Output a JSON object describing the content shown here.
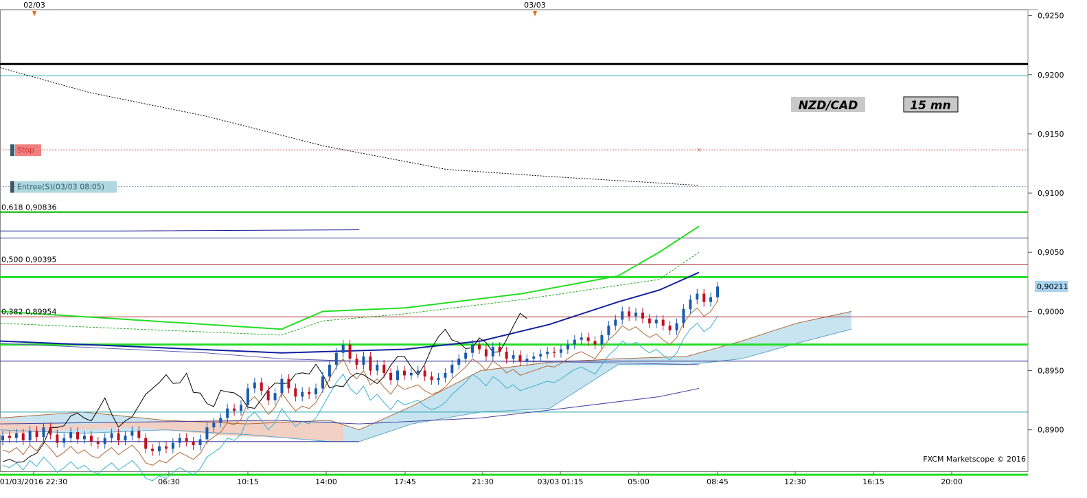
{
  "chart_data": {
    "type": "candlestick",
    "instrument_label": "NZD/CAD",
    "timeframe_label": "15 mn",
    "watermark": "FXCM Marketscope © 2016",
    "y_range": [
      0.8865,
      0.9255
    ],
    "y_ticks": [
      "0,9250",
      "0,9200",
      "0,9150",
      "0,9100",
      "0,9050",
      "0,9000",
      "0,8950",
      "0,8900"
    ],
    "y_tick_values": [
      0.925,
      0.92,
      0.915,
      0.91,
      0.905,
      0.9,
      0.895,
      0.89
    ],
    "current_price_label": "0,90211",
    "current_price": 0.90211,
    "x_ticks": [
      "01/03/2016 22:30",
      "06:30",
      "10:15",
      "14:00",
      "17:45",
      "21:30",
      "03/03 01:15",
      "05:00",
      "08:45",
      "12:30",
      "16:15",
      "20:00"
    ],
    "top_date_labels": [
      "02/03",
      "03/03"
    ],
    "fib_levels": [
      {
        "label": "0,618 0,90836",
        "value": 0.90836
      },
      {
        "label": "0,500 0,90395",
        "value": 0.90395
      },
      {
        "label": "0,382 0,89954",
        "value": 0.89954
      }
    ],
    "order_labels": [
      {
        "label": "Stop",
        "value": 0.91365
      },
      {
        "label": "Entree(S)(03/03 08:05)",
        "value": 0.91055
      }
    ],
    "horizontal_levels": [
      0.9209,
      0.9199,
      0.9084,
      0.9062,
      0.9029,
      0.8972,
      0.8958,
      0.8915,
      0.8862
    ],
    "candles_close": [
      0.8895,
      0.8893,
      0.8897,
      0.8891,
      0.8899,
      0.8894,
      0.8902,
      0.8896,
      0.8889,
      0.8893,
      0.8898,
      0.8892,
      0.8895,
      0.889,
      0.8888,
      0.8893,
      0.8897,
      0.8891,
      0.8895,
      0.8899,
      0.8893,
      0.8884,
      0.8882,
      0.8886,
      0.8884,
      0.8889,
      0.8893,
      0.889,
      0.8887,
      0.8892,
      0.8902,
      0.8906,
      0.891,
      0.8918,
      0.8916,
      0.8921,
      0.8935,
      0.894,
      0.8933,
      0.8925,
      0.8931,
      0.8943,
      0.8935,
      0.8928,
      0.8932,
      0.893,
      0.8935,
      0.8945,
      0.8955,
      0.8965,
      0.8972,
      0.896,
      0.8955,
      0.8962,
      0.895,
      0.8955,
      0.8948,
      0.8942,
      0.895,
      0.8946,
      0.8948,
      0.895,
      0.8945,
      0.8942,
      0.8944,
      0.8948,
      0.8955,
      0.896,
      0.8965,
      0.8972,
      0.8968,
      0.8962,
      0.897,
      0.8966,
      0.896,
      0.8963,
      0.8958,
      0.896,
      0.8962,
      0.8964,
      0.8966,
      0.8965,
      0.8968,
      0.8972,
      0.8976,
      0.8978,
      0.8975,
      0.8972,
      0.898,
      0.8988,
      0.8993,
      0.9,
      0.8996,
      0.8999,
      0.8994,
      0.899,
      0.8993,
      0.8988,
      0.8984,
      0.899,
      0.9002,
      0.901,
      0.9015,
      0.9008,
      0.9012,
      0.9021
    ],
    "ichimoku_kijun": [
      0.9035,
      0.9038,
      0.9041,
      0.9049,
      0.9054,
      0.9068
    ],
    "ma_blue_thick": [
      0.8975,
      0.8965,
      0.8968,
      0.8975,
      0.8989,
      0.9008,
      0.9018,
      0.9033
    ],
    "ma_green_thick": [
      0.9,
      0.8985,
      0.9,
      0.9003,
      0.9015,
      0.903,
      0.905,
      0.9072
    ]
  }
}
